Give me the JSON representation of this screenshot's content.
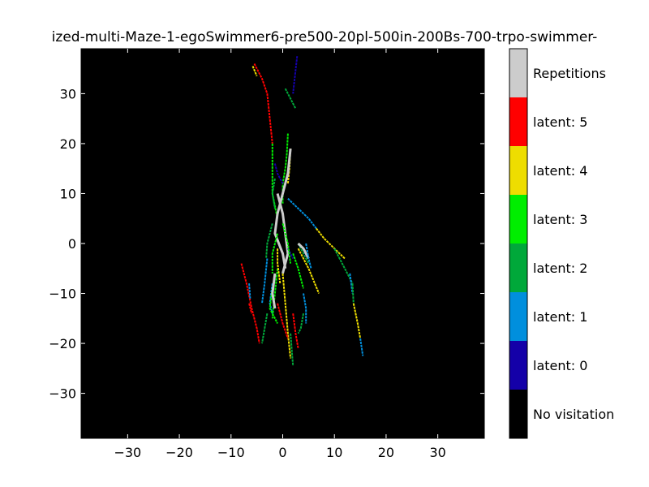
{
  "title": "ized-multi-Maze-1-egoSwimmer6-pre500-20pl-500in-200Bs-700-trpo-swimmer-",
  "chart_data": {
    "type": "heatmap",
    "xlim": [
      -39,
      39
    ],
    "ylim": [
      -39,
      39
    ],
    "x_ticks": [
      "−30",
      "−20",
      "−10",
      "0",
      "10",
      "20",
      "30"
    ],
    "x_tick_values": [
      -30,
      -20,
      -10,
      0,
      10,
      20,
      30
    ],
    "y_ticks": [
      "30",
      "20",
      "10",
      "0",
      "−10",
      "−20",
      "−30"
    ],
    "y_tick_values": [
      30,
      20,
      10,
      0,
      -10,
      -20,
      -30
    ],
    "background_color": "#000000",
    "legend": [
      {
        "label": "No visitation",
        "color": "#000000"
      },
      {
        "label": "latent: 0",
        "color": "#1400a8"
      },
      {
        "label": "latent: 1",
        "color": "#008fdd"
      },
      {
        "label": "latent: 2",
        "color": "#00a83a"
      },
      {
        "label": "latent: 3",
        "color": "#00ee00"
      },
      {
        "label": "latent: 4",
        "color": "#eedd00"
      },
      {
        "label": "latent: 5",
        "color": "#ff0000"
      },
      {
        "label": "Repetitions",
        "color": "#cccccc"
      }
    ],
    "paths": [
      {
        "latent": 5,
        "points": [
          [
            -5.5,
            36
          ],
          [
            -4,
            33
          ],
          [
            -3,
            30
          ],
          [
            -2.5,
            25
          ],
          [
            -2,
            20
          ]
        ]
      },
      {
        "latent": 4,
        "points": [
          [
            -5.8,
            35.5
          ],
          [
            -5,
            33.5
          ]
        ]
      },
      {
        "latent": 3,
        "points": [
          [
            -2,
            20
          ],
          [
            -2,
            15
          ],
          [
            -2,
            10
          ],
          [
            -1,
            5
          ]
        ]
      },
      {
        "latent": 0,
        "points": [
          [
            2.8,
            37.5
          ],
          [
            2.3,
            33
          ],
          [
            2,
            30
          ]
        ]
      },
      {
        "latent": 2,
        "points": [
          [
            0.5,
            31
          ],
          [
            1.5,
            29
          ],
          [
            2.5,
            27
          ]
        ]
      },
      {
        "latent": 3,
        "points": [
          [
            1,
            22
          ],
          [
            0.8,
            18
          ],
          [
            0.5,
            15
          ],
          [
            0,
            12
          ],
          [
            0,
            8
          ]
        ]
      },
      {
        "latent": 4,
        "points": [
          [
            1.5,
            19
          ],
          [
            1.3,
            15
          ],
          [
            1,
            12
          ]
        ]
      },
      {
        "latent": 0,
        "points": [
          [
            -1.5,
            16
          ],
          [
            -1,
            14
          ],
          [
            0,
            12
          ]
        ]
      },
      {
        "latent": 6,
        "points": [
          [
            1.5,
            19
          ],
          [
            1,
            14
          ],
          [
            0,
            10
          ],
          [
            -1,
            6
          ],
          [
            -1.5,
            2
          ],
          [
            0,
            -2
          ],
          [
            0.5,
            -5
          ]
        ]
      },
      {
        "latent": 6,
        "points": [
          [
            -1,
            10
          ],
          [
            0,
            6
          ],
          [
            0.5,
            2
          ],
          [
            1,
            -2
          ],
          [
            0,
            -6
          ]
        ]
      },
      {
        "latent": 1,
        "points": [
          [
            1,
            9
          ],
          [
            3,
            7
          ],
          [
            5,
            5
          ],
          [
            6.5,
            3
          ]
        ]
      },
      {
        "latent": 4,
        "points": [
          [
            6.5,
            3
          ],
          [
            8,
            1
          ],
          [
            10,
            -1
          ],
          [
            12,
            -3
          ]
        ]
      },
      {
        "latent": 2,
        "points": [
          [
            10,
            -1
          ],
          [
            12,
            -5
          ],
          [
            13.5,
            -8
          ]
        ]
      },
      {
        "latent": 1,
        "points": [
          [
            13,
            -6
          ],
          [
            13.5,
            -10
          ]
        ]
      },
      {
        "latent": 2,
        "points": [
          [
            13.5,
            -8
          ],
          [
            13.7,
            -12
          ]
        ]
      },
      {
        "latent": 4,
        "points": [
          [
            13.7,
            -12
          ],
          [
            14.5,
            -16
          ],
          [
            15,
            -19
          ]
        ]
      },
      {
        "latent": 1,
        "points": [
          [
            15,
            -19
          ],
          [
            15.5,
            -22.5
          ]
        ]
      },
      {
        "latent": 1,
        "points": [
          [
            -3,
            -3
          ],
          [
            -3.5,
            -8
          ],
          [
            -4,
            -12
          ]
        ]
      },
      {
        "latent": 2,
        "points": [
          [
            -2,
            4
          ],
          [
            -3,
            0
          ],
          [
            -3.2,
            -3
          ]
        ]
      },
      {
        "latent": 3,
        "points": [
          [
            -1,
            2
          ],
          [
            -2,
            -2
          ],
          [
            -2,
            -6
          ]
        ]
      },
      {
        "latent": 5,
        "points": [
          [
            -8,
            -4
          ],
          [
            -7,
            -8
          ],
          [
            -6,
            -13
          ],
          [
            -5,
            -17
          ],
          [
            -4.5,
            -20
          ]
        ]
      },
      {
        "latent": 5,
        "points": [
          [
            -6.5,
            -12
          ],
          [
            -6,
            -14
          ]
        ]
      },
      {
        "latent": 1,
        "points": [
          [
            -6.5,
            -8
          ],
          [
            -6.3,
            -11
          ]
        ]
      },
      {
        "latent": 2,
        "points": [
          [
            -3,
            -14
          ],
          [
            -3.5,
            -17
          ],
          [
            -4,
            -20
          ]
        ]
      },
      {
        "latent": 4,
        "points": [
          [
            0,
            -6
          ],
          [
            0.5,
            -12
          ],
          [
            1,
            -18
          ],
          [
            1.5,
            -23
          ]
        ]
      },
      {
        "latent": 2,
        "points": [
          [
            1.5,
            -18
          ],
          [
            2,
            -24.5
          ]
        ]
      },
      {
        "latent": 5,
        "points": [
          [
            2,
            -14
          ],
          [
            2.5,
            -18
          ],
          [
            3,
            -21
          ]
        ]
      },
      {
        "latent": 5,
        "points": [
          [
            -1,
            -12
          ],
          [
            0,
            -16
          ],
          [
            1,
            -19
          ]
        ]
      },
      {
        "latent": 3,
        "points": [
          [
            -1,
            -5
          ],
          [
            -1.5,
            -10
          ],
          [
            -2,
            -15
          ]
        ]
      },
      {
        "latent": 1,
        "points": [
          [
            -2,
            -8
          ],
          [
            -2.5,
            -12
          ],
          [
            -2,
            -14
          ]
        ]
      },
      {
        "latent": 4,
        "points": [
          [
            -1,
            -1
          ],
          [
            -1,
            -4
          ],
          [
            -0.5,
            -8
          ]
        ]
      },
      {
        "latent": 4,
        "points": [
          [
            3,
            -1
          ],
          [
            5,
            -5
          ],
          [
            7,
            -10
          ]
        ]
      },
      {
        "latent": 2,
        "points": [
          [
            3,
            0
          ],
          [
            4,
            -2
          ],
          [
            5,
            -4
          ]
        ]
      },
      {
        "latent": 3,
        "points": [
          [
            2,
            -2
          ],
          [
            3,
            -5
          ],
          [
            4,
            -9
          ]
        ]
      },
      {
        "latent": 1,
        "points": [
          [
            4,
            -10
          ],
          [
            4.5,
            -13
          ],
          [
            4.5,
            -16
          ]
        ]
      },
      {
        "latent": 2,
        "points": [
          [
            4,
            -14
          ],
          [
            3.5,
            -17
          ],
          [
            3,
            -18
          ]
        ]
      },
      {
        "latent": 0,
        "points": [
          [
            4,
            -1
          ],
          [
            4.5,
            -2.5
          ]
        ]
      },
      {
        "latent": 0,
        "points": [
          [
            1,
            -1
          ],
          [
            2,
            -3
          ]
        ]
      },
      {
        "latent": 6,
        "points": [
          [
            3,
            0
          ],
          [
            4,
            -1
          ],
          [
            5,
            -3
          ]
        ]
      },
      {
        "latent": 1,
        "points": [
          [
            4.5,
            0
          ],
          [
            5,
            -3
          ],
          [
            5.5,
            -5
          ]
        ]
      },
      {
        "latent": 3,
        "points": [
          [
            -2,
            -9
          ],
          [
            -2.5,
            -13
          ],
          [
            -1,
            -16
          ]
        ]
      },
      {
        "latent": 6,
        "points": [
          [
            -1.5,
            -6
          ],
          [
            -2,
            -10
          ],
          [
            -1.5,
            -13
          ]
        ]
      },
      {
        "latent": 2,
        "points": [
          [
            -1.5,
            13
          ],
          [
            -2,
            10
          ],
          [
            -1.5,
            7
          ]
        ]
      },
      {
        "latent": 3,
        "points": [
          [
            0,
            4
          ],
          [
            1,
            0
          ],
          [
            1.5,
            -4
          ]
        ]
      }
    ]
  }
}
